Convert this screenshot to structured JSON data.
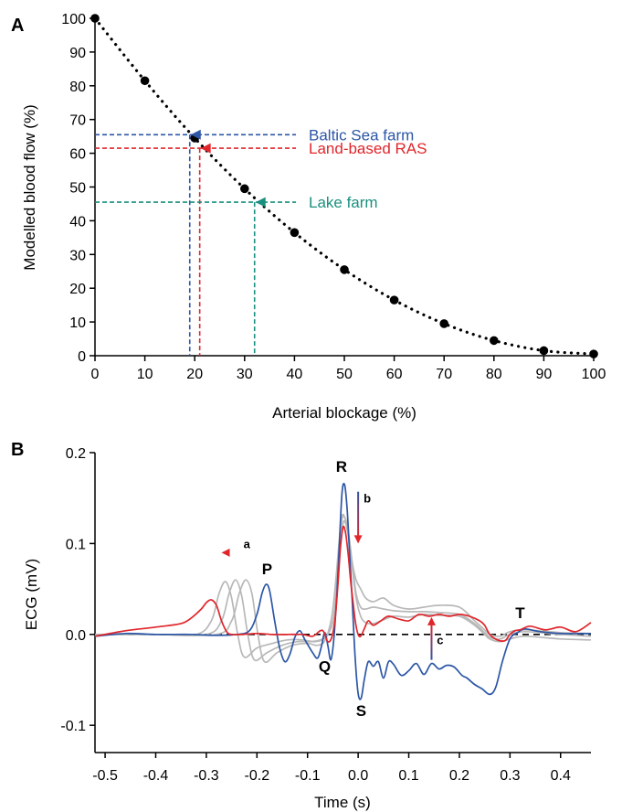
{
  "colors": {
    "baltic": "#2c56a6",
    "ras": "#e0262b",
    "lake": "#19907f",
    "ecg_control": "#2c56a6",
    "ecg_treated": "#e0262b",
    "ecg_intermediate": "#b8b8b8"
  },
  "chart_data": [
    {
      "panel": "A",
      "type": "scatter",
      "xlabel": "Arterial blockage (%)",
      "ylabel": "Modelled blood flow (%)",
      "xlim": [
        0,
        100
      ],
      "ylim": [
        0,
        100
      ],
      "xticks": [
        0,
        10,
        20,
        30,
        40,
        50,
        60,
        70,
        80,
        90,
        100
      ],
      "yticks": [
        0,
        10,
        20,
        30,
        40,
        50,
        60,
        70,
        80,
        90,
        100
      ],
      "grid": false,
      "series": [
        {
          "x": [
            0,
            10,
            20,
            30,
            40,
            50,
            60,
            70,
            80,
            90,
            100
          ],
          "y": [
            100,
            81.5,
            64.5,
            49.5,
            36.5,
            25.5,
            16.5,
            9.5,
            4.5,
            1.5,
            0.5
          ]
        }
      ],
      "annotations": [
        {
          "label": "Baltic Sea farm",
          "x": 19,
          "y": 65.5,
          "color": "#2c56a6"
        },
        {
          "label": "Land-based RAS",
          "x": 21,
          "y": 61.5,
          "color": "#e0262b"
        },
        {
          "label": "Lake farm",
          "x": 32,
          "y": 45.5,
          "color": "#19907f"
        }
      ]
    },
    {
      "panel": "B",
      "type": "line",
      "xlabel": "Time  (s)",
      "ylabel": "ECG (mV)",
      "xlim": [
        -0.52,
        0.46
      ],
      "ylim": [
        -0.13,
        0.2
      ],
      "xticks": [
        -0.5,
        -0.4,
        -0.3,
        -0.2,
        -0.1,
        0.0,
        0.1,
        0.2,
        0.3,
        0.4
      ],
      "xtick_labels": [
        "-0.5",
        "-0.4",
        "-0.3",
        "-0.2",
        "-0.1",
        "0.0",
        "0.1",
        "0.2",
        "0.3",
        "0.4"
      ],
      "yticks": [
        -0.1,
        0.0,
        0.1,
        0.2
      ],
      "ytick_labels": [
        "-0.1",
        "0.0",
        "0.1",
        "0.2"
      ],
      "grid": false,
      "wave_labels": [
        {
          "text": "P",
          "x": -0.18,
          "y": 0.066
        },
        {
          "text": "Q",
          "x": -0.066,
          "y": -0.041
        },
        {
          "text": "R",
          "x": -0.033,
          "y": 0.179
        },
        {
          "text": "S",
          "x": 0.006,
          "y": -0.09
        },
        {
          "text": "T",
          "x": 0.32,
          "y": 0.018
        }
      ],
      "arrow_labels": [
        {
          "text": "a",
          "x": -0.22,
          "y": 0.095
        },
        {
          "text": "b",
          "x": 0.018,
          "y": 0.145
        },
        {
          "text": "c",
          "x": 0.162,
          "y": -0.011
        }
      ],
      "series": [
        {
          "color": "#2c56a6",
          "x": [
            -0.52,
            -0.46,
            -0.4,
            -0.33,
            -0.28,
            -0.24,
            -0.215,
            -0.2,
            -0.19,
            -0.182,
            -0.175,
            -0.165,
            -0.155,
            -0.145,
            -0.135,
            -0.125,
            -0.115,
            -0.105,
            -0.09,
            -0.08,
            -0.072,
            -0.066,
            -0.06,
            -0.054,
            -0.048,
            -0.042,
            -0.037,
            -0.032,
            -0.027,
            -0.022,
            -0.017,
            -0.012,
            -0.006,
            0.0,
            0.006,
            0.012,
            0.02,
            0.03,
            0.04,
            0.05,
            0.06,
            0.07,
            0.085,
            0.1,
            0.115,
            0.13,
            0.145,
            0.16,
            0.175,
            0.19,
            0.205,
            0.215,
            0.23,
            0.245,
            0.26,
            0.272,
            0.285,
            0.3,
            0.315,
            0.33,
            0.36,
            0.4,
            0.46
          ],
          "y": [
            -0.002,
            0.001,
            0.0,
            0.0,
            -0.001,
            0.0,
            0.004,
            0.022,
            0.045,
            0.055,
            0.048,
            0.015,
            -0.015,
            -0.03,
            -0.022,
            -0.003,
            0.004,
            -0.006,
            -0.02,
            -0.026,
            -0.012,
            0.002,
            -0.012,
            -0.028,
            -0.005,
            0.045,
            0.1,
            0.155,
            0.165,
            0.14,
            0.09,
            0.04,
            -0.025,
            -0.065,
            -0.07,
            -0.05,
            -0.03,
            -0.035,
            -0.03,
            -0.048,
            -0.03,
            -0.033,
            -0.045,
            -0.04,
            -0.032,
            -0.044,
            -0.032,
            -0.038,
            -0.034,
            -0.036,
            -0.045,
            -0.048,
            -0.055,
            -0.06,
            -0.066,
            -0.058,
            -0.03,
            -0.005,
            0.002,
            0.006,
            0.003,
            0.001,
            0.001
          ]
        },
        {
          "color": "#e0262b",
          "x": [
            -0.52,
            -0.46,
            -0.4,
            -0.35,
            -0.33,
            -0.31,
            -0.3,
            -0.29,
            -0.28,
            -0.27,
            -0.26,
            -0.25,
            -0.23,
            -0.2,
            -0.17,
            -0.14,
            -0.11,
            -0.09,
            -0.075,
            -0.068,
            -0.06,
            -0.052,
            -0.045,
            -0.04,
            -0.035,
            -0.03,
            -0.025,
            -0.02,
            -0.015,
            -0.01,
            -0.005,
            0.0,
            0.005,
            0.012,
            0.02,
            0.03,
            0.045,
            0.06,
            0.08,
            0.1,
            0.12,
            0.14,
            0.16,
            0.18,
            0.2,
            0.22,
            0.24,
            0.25,
            0.26,
            0.275,
            0.29,
            0.3,
            0.31,
            0.32,
            0.34,
            0.37,
            0.4,
            0.43,
            0.46
          ],
          "y": [
            -0.002,
            0.004,
            0.008,
            0.012,
            0.018,
            0.028,
            0.035,
            0.038,
            0.032,
            0.015,
            0.003,
            0.0,
            0.0,
            0.001,
            0.0,
            0.0,
            0.0,
            -0.002,
            0.004,
            0.003,
            -0.008,
            -0.003,
            0.02,
            0.055,
            0.095,
            0.118,
            0.112,
            0.09,
            0.06,
            0.035,
            0.012,
            0.0,
            -0.002,
            0.006,
            0.015,
            0.01,
            0.015,
            0.02,
            0.017,
            0.015,
            0.022,
            0.02,
            0.022,
            0.02,
            0.022,
            0.02,
            0.015,
            0.01,
            0.0,
            -0.006,
            -0.007,
            0.0,
            0.004,
            0.005,
            0.009,
            0.005,
            0.008,
            0.003,
            0.013
          ]
        },
        {
          "color": "#b8b8b8",
          "x": [
            -0.52,
            -0.4,
            -0.32,
            -0.29,
            -0.275,
            -0.262,
            -0.25,
            -0.238,
            -0.225,
            -0.2,
            -0.17,
            -0.14,
            -0.11,
            -0.085,
            -0.065,
            -0.05,
            -0.04,
            -0.034,
            -0.028,
            -0.02,
            -0.012,
            -0.004,
            0.005,
            0.015,
            0.03,
            0.05,
            0.07,
            0.1,
            0.13,
            0.16,
            0.2,
            0.23,
            0.25,
            0.26,
            0.28,
            0.3,
            0.33,
            0.4,
            0.46
          ],
          "y": [
            0.0,
            0.0,
            0.0,
            0.015,
            0.045,
            0.058,
            0.04,
            0.0,
            -0.025,
            -0.015,
            -0.01,
            -0.006,
            -0.006,
            -0.008,
            -0.003,
            0.015,
            0.06,
            0.105,
            0.125,
            0.11,
            0.075,
            0.04,
            0.02,
            0.013,
            0.012,
            0.016,
            0.02,
            0.019,
            0.022,
            0.021,
            0.02,
            0.01,
            0.0,
            -0.005,
            -0.008,
            -0.005,
            -0.002,
            -0.005,
            -0.006
          ]
        },
        {
          "color": "#b8b8b8",
          "x": [
            -0.52,
            -0.4,
            -0.3,
            -0.27,
            -0.255,
            -0.242,
            -0.23,
            -0.218,
            -0.205,
            -0.18,
            -0.15,
            -0.12,
            -0.095,
            -0.075,
            -0.06,
            -0.048,
            -0.04,
            -0.034,
            -0.028,
            -0.02,
            -0.012,
            -0.004,
            0.005,
            0.015,
            0.03,
            0.05,
            0.07,
            0.1,
            0.13,
            0.16,
            0.2,
            0.23,
            0.25,
            0.26,
            0.28,
            0.3,
            0.33,
            0.4,
            0.46
          ],
          "y": [
            0.0,
            0.0,
            0.0,
            0.015,
            0.045,
            0.06,
            0.042,
            0.0,
            -0.028,
            -0.02,
            -0.012,
            -0.008,
            -0.008,
            -0.006,
            0.0,
            0.02,
            0.075,
            0.12,
            0.13,
            0.115,
            0.08,
            0.045,
            0.03,
            0.028,
            0.03,
            0.028,
            0.026,
            0.025,
            0.025,
            0.024,
            0.022,
            0.012,
            0.002,
            -0.003,
            -0.005,
            0.0,
            0.003,
            0.0,
            -0.002
          ]
        },
        {
          "color": "#b8b8b8",
          "x": [
            -0.52,
            -0.4,
            -0.28,
            -0.25,
            -0.235,
            -0.222,
            -0.21,
            -0.198,
            -0.185,
            -0.16,
            -0.13,
            -0.1,
            -0.08,
            -0.065,
            -0.052,
            -0.044,
            -0.038,
            -0.032,
            -0.026,
            -0.02,
            -0.012,
            -0.004,
            0.005,
            0.015,
            0.03,
            0.05,
            0.07,
            0.1,
            0.13,
            0.16,
            0.2,
            0.23,
            0.25,
            0.26,
            0.28,
            0.3,
            0.33,
            0.4,
            0.46
          ],
          "y": [
            0.0,
            0.0,
            0.0,
            0.015,
            0.045,
            0.06,
            0.045,
            0.0,
            -0.03,
            -0.02,
            -0.012,
            -0.01,
            -0.012,
            -0.006,
            0.02,
            0.06,
            0.1,
            0.13,
            0.128,
            0.115,
            0.08,
            0.06,
            0.05,
            0.04,
            0.036,
            0.04,
            0.032,
            0.028,
            0.03,
            0.032,
            0.03,
            0.015,
            0.005,
            0.0,
            -0.002,
            0.003,
            0.005,
            0.002,
            0.001
          ]
        }
      ]
    }
  ]
}
